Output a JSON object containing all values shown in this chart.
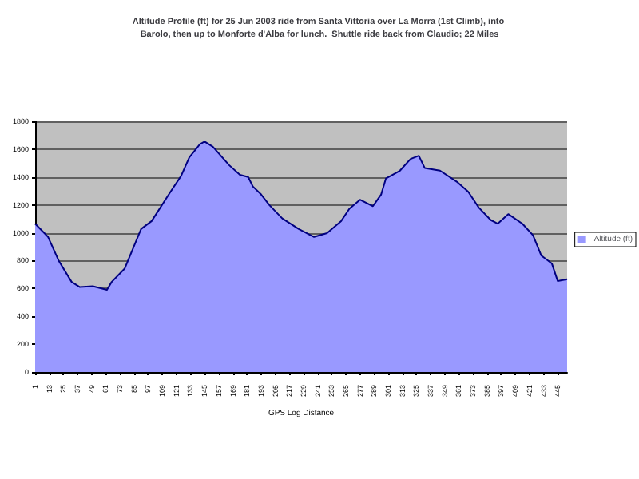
{
  "chart_data": {
    "type": "area",
    "title": "Altitude Profile (ft) for 25 Jun 2003 ride from Santa Vittoria over La Morra (1st Climb), into Barolo, then up to Monforte d'Alba for lunch.  Shuttle ride back from Claudio; 22 Miles",
    "xlabel": "GPS Log Distance",
    "xlim": [
      1,
      453
    ],
    "xticks": [
      1,
      13,
      25,
      37,
      49,
      61,
      73,
      85,
      97,
      109,
      121,
      133,
      145,
      157,
      169,
      181,
      193,
      205,
      217,
      229,
      241,
      253,
      265,
      277,
      289,
      301,
      313,
      325,
      337,
      349,
      361,
      373,
      385,
      397,
      409,
      421,
      433,
      445
    ],
    "ylim": [
      0,
      1800
    ],
    "yticks": [
      0,
      200,
      400,
      600,
      800,
      1000,
      1200,
      1400,
      1600,
      1800
    ],
    "grid": "y",
    "legend": "right",
    "marker": "none",
    "series": [
      {
        "name": "Altitude (ft)",
        "color": "#9999ff",
        "x": [
          1,
          12,
          21,
          32,
          39,
          50,
          62,
          66,
          77,
          91,
          100,
          116,
          125,
          132,
          141,
          145,
          152,
          166,
          175,
          182,
          186,
          193,
          200,
          211,
          225,
          238,
          249,
          261,
          268,
          277,
          288,
          295,
          299,
          311,
          320,
          327,
          332,
          345,
          360,
          369,
          378,
          388,
          394,
          403,
          415,
          424,
          431,
          440,
          445,
          453
        ],
        "values": [
          1065,
          970,
          800,
          647,
          610,
          616,
          590,
          647,
          742,
          1027,
          1084,
          1294,
          1408,
          1541,
          1636,
          1655,
          1617,
          1484,
          1416,
          1400,
          1332,
          1275,
          1199,
          1103,
          1027,
          970,
          997,
          1084,
          1172,
          1237,
          1191,
          1275,
          1389,
          1446,
          1530,
          1553,
          1465,
          1446,
          1362,
          1294,
          1180,
          1092,
          1065,
          1134,
          1065,
          982,
          837,
          780,
          654,
          666
        ]
      }
    ]
  }
}
